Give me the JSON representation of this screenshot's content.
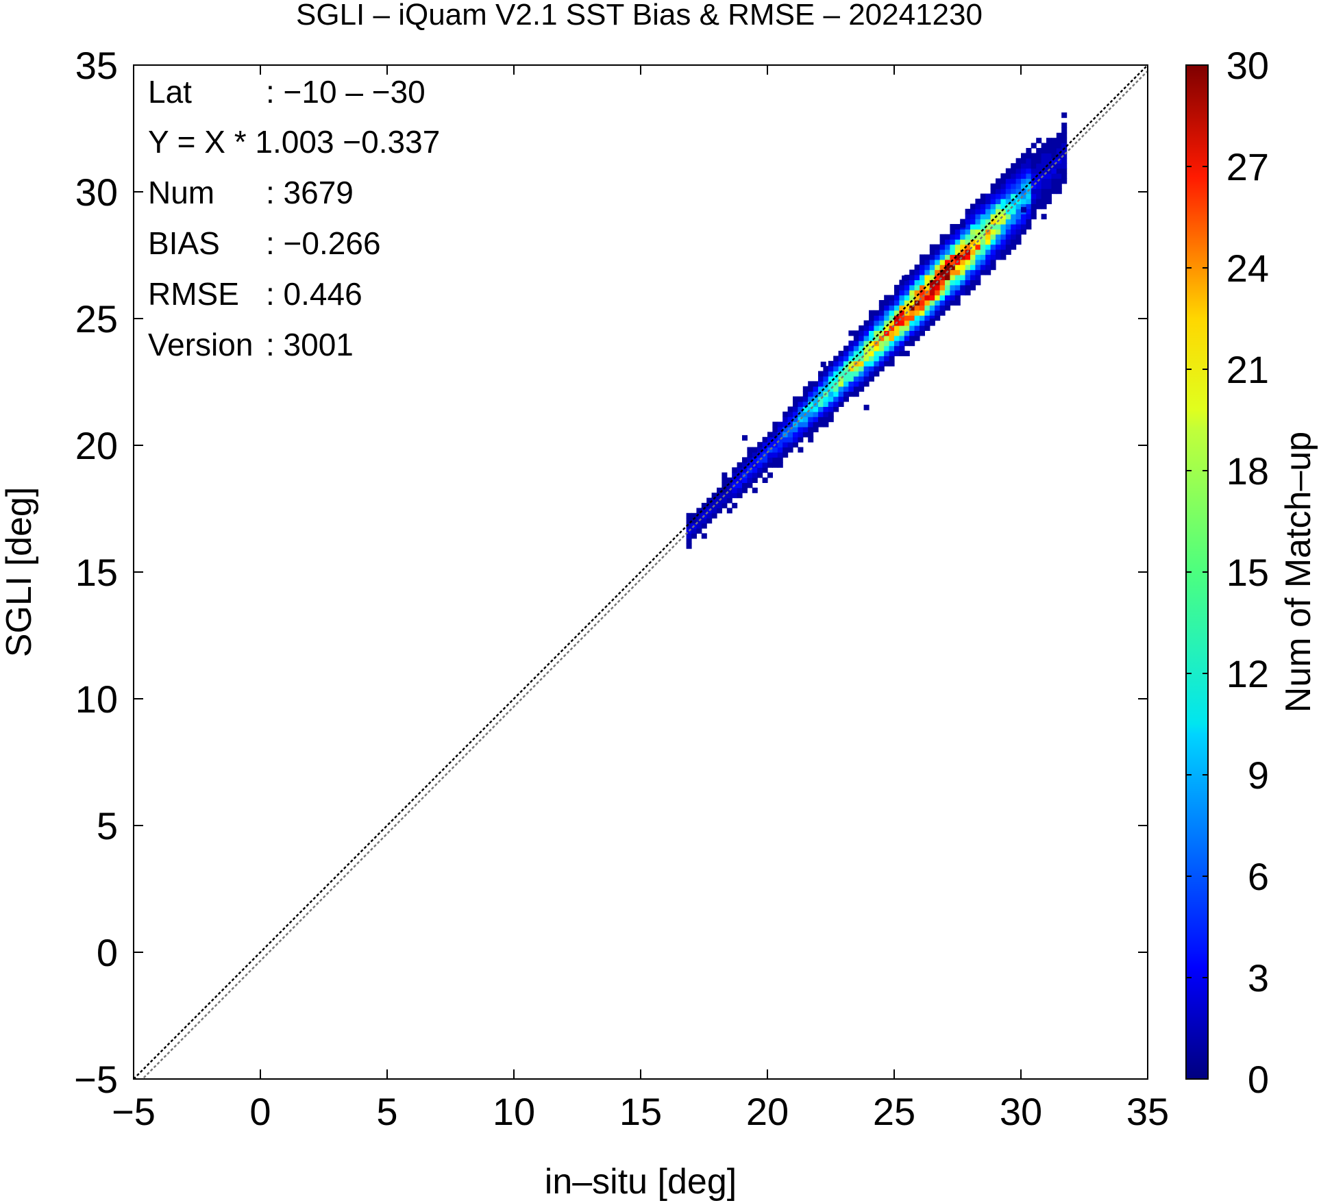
{
  "chart_data": {
    "type": "heatmap",
    "title": "SGLI – iQuam V2.1 SST Bias & RMSE  – 20241230",
    "xlabel": "in–situ [deg]",
    "ylabel": "SGLI [deg]",
    "xlim": [
      -5,
      35
    ],
    "ylim": [
      -5,
      35
    ],
    "xticks": [
      "−5",
      "0",
      "5",
      "10",
      "15",
      "20",
      "25",
      "30",
      "35"
    ],
    "yticks": [
      "−5",
      "0",
      "5",
      "10",
      "15",
      "20",
      "25",
      "30",
      "35"
    ],
    "grid": false,
    "reference_lines": [
      {
        "name": "1:1 line",
        "slope": 1.0,
        "intercept": 0.0,
        "style": "dotted",
        "color": "#000000"
      },
      {
        "name": "regression",
        "slope": 1.003,
        "intercept": -0.337,
        "style": "dotted",
        "color": "#777777"
      }
    ],
    "colorbar": {
      "label": "Num of Match–up",
      "range": [
        0,
        30
      ],
      "ticks": [
        "0",
        "3",
        "6",
        "9",
        "12",
        "15",
        "18",
        "21",
        "24",
        "27",
        "30"
      ],
      "colormap": "jet"
    },
    "density": {
      "bin_size": 0.2,
      "x_range": [
        16.8,
        31.6
      ],
      "center_offset": -0.27,
      "peak_count": 30,
      "peak_near_x": 26.5
    },
    "stats": [
      {
        "label": "Lat",
        "value": ": −10 – −30"
      },
      {
        "label": "Y = X * 1.003 −0.337",
        "value": ""
      },
      {
        "label": "Num",
        "value": ": 3679"
      },
      {
        "label": "BIAS",
        "value": ": −0.266"
      },
      {
        "label": "RMSE",
        "value": ": 0.446"
      },
      {
        "label": "Version",
        "value": ": 3001"
      }
    ]
  }
}
